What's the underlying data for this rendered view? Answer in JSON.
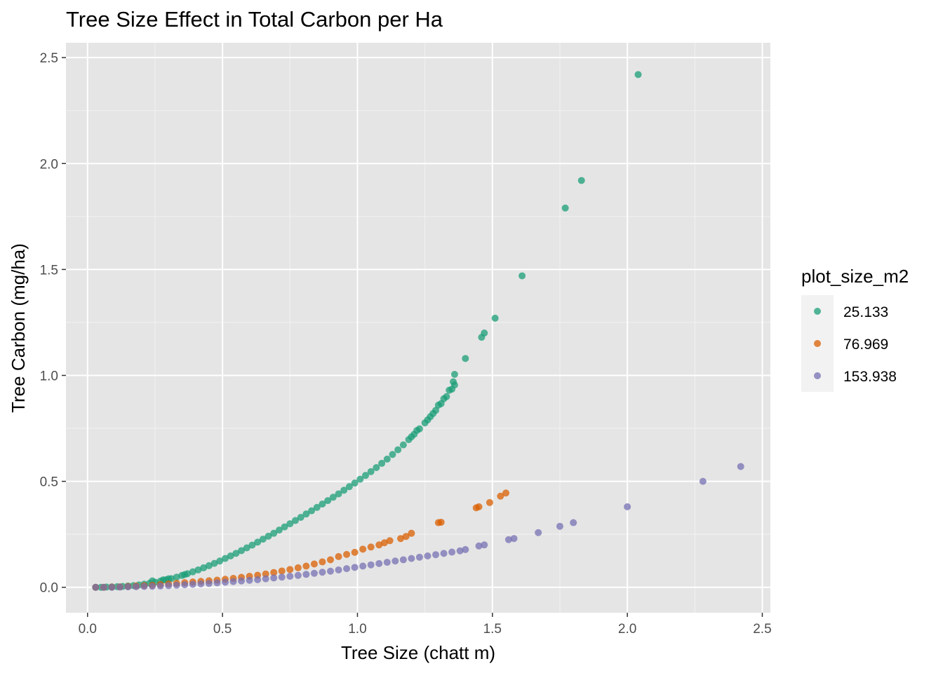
{
  "chart_data": {
    "type": "scatter",
    "title": "Tree  Size Effect in Total Carbon per Ha",
    "xlabel": "Tree Size (chatt m)",
    "ylabel": "Tree Carbon (mg/ha)",
    "xlim": [
      -0.08,
      2.53
    ],
    "ylim": [
      -0.12,
      2.57
    ],
    "x_ticks": [
      0.0,
      0.5,
      1.0,
      1.5,
      2.0,
      2.5
    ],
    "x_tick_labels": [
      "0.0",
      "0.5",
      "1.0",
      "1.5",
      "2.0",
      "2.5"
    ],
    "y_ticks": [
      0.0,
      0.5,
      1.0,
      1.5,
      2.0,
      2.5
    ],
    "y_tick_labels": [
      "0.0",
      "0.5",
      "1.0",
      "1.5",
      "2.0",
      "2.5"
    ],
    "grid": true,
    "legend": {
      "title": "plot_size_m2",
      "placement": "right"
    },
    "series": [
      {
        "name": "25.133",
        "color": "#1b9e77",
        "points": [
          [
            0.03,
            0.0
          ],
          [
            0.05,
            0.0
          ],
          [
            0.07,
            0.001
          ],
          [
            0.09,
            0.002
          ],
          [
            0.11,
            0.003
          ],
          [
            0.13,
            0.004
          ],
          [
            0.15,
            0.006
          ],
          [
            0.17,
            0.008
          ],
          [
            0.19,
            0.011
          ],
          [
            0.21,
            0.015
          ],
          [
            0.23,
            0.019
          ],
          [
            0.25,
            0.024
          ],
          [
            0.27,
            0.029
          ],
          [
            0.29,
            0.035
          ],
          [
            0.31,
            0.041
          ],
          [
            0.33,
            0.048
          ],
          [
            0.35,
            0.056
          ],
          [
            0.37,
            0.064
          ],
          [
            0.39,
            0.073
          ],
          [
            0.41,
            0.082
          ],
          [
            0.43,
            0.092
          ],
          [
            0.45,
            0.102
          ],
          [
            0.47,
            0.113
          ],
          [
            0.49,
            0.124
          ],
          [
            0.51,
            0.136
          ],
          [
            0.53,
            0.148
          ],
          [
            0.55,
            0.16
          ],
          [
            0.57,
            0.173
          ],
          [
            0.59,
            0.186
          ],
          [
            0.61,
            0.199
          ],
          [
            0.63,
            0.213
          ],
          [
            0.65,
            0.227
          ],
          [
            0.67,
            0.241
          ],
          [
            0.69,
            0.255
          ],
          [
            0.71,
            0.27
          ],
          [
            0.73,
            0.285
          ],
          [
            0.75,
            0.3
          ],
          [
            0.77,
            0.315
          ],
          [
            0.79,
            0.33
          ],
          [
            0.81,
            0.346
          ],
          [
            0.83,
            0.361
          ],
          [
            0.85,
            0.377
          ],
          [
            0.87,
            0.393
          ],
          [
            0.89,
            0.409
          ],
          [
            0.91,
            0.425
          ],
          [
            0.93,
            0.441
          ],
          [
            0.95,
            0.458
          ],
          [
            0.97,
            0.475
          ],
          [
            0.99,
            0.492
          ],
          [
            1.01,
            0.51
          ],
          [
            1.03,
            0.528
          ],
          [
            1.05,
            0.546
          ],
          [
            1.07,
            0.565
          ],
          [
            1.09,
            0.585
          ],
          [
            1.11,
            0.605
          ],
          [
            1.13,
            0.627
          ],
          [
            1.15,
            0.649
          ],
          [
            1.17,
            0.672
          ],
          [
            1.19,
            0.697
          ],
          [
            1.21,
            0.722
          ],
          [
            1.23,
            0.748
          ],
          [
            1.25,
            0.776
          ],
          [
            1.27,
            0.805
          ],
          [
            1.29,
            0.835
          ],
          [
            1.31,
            0.867
          ],
          [
            1.33,
            0.9
          ],
          [
            1.35,
            0.935
          ],
          [
            1.36,
            0.955
          ],
          [
            0.24,
            0.03
          ],
          [
            0.28,
            0.035
          ],
          [
            0.3,
            0.04
          ],
          [
            0.36,
            0.06
          ],
          [
            1.2,
            0.71
          ],
          [
            1.22,
            0.74
          ],
          [
            1.26,
            0.79
          ],
          [
            1.28,
            0.82
          ],
          [
            1.3,
            0.86
          ],
          [
            1.32,
            0.89
          ],
          [
            1.34,
            0.93
          ],
          [
            1.355,
            0.97
          ],
          [
            1.36,
            1.005
          ],
          [
            1.4,
            1.08
          ],
          [
            1.46,
            1.18
          ],
          [
            1.47,
            1.2
          ],
          [
            1.51,
            1.27
          ],
          [
            1.61,
            1.47
          ],
          [
            1.77,
            1.79
          ],
          [
            1.83,
            1.92
          ],
          [
            2.04,
            2.42
          ]
        ]
      },
      {
        "name": "76.969",
        "color": "#d95f02",
        "points": [
          [
            0.03,
            0.0
          ],
          [
            0.06,
            0.0
          ],
          [
            0.09,
            0.001
          ],
          [
            0.12,
            0.002
          ],
          [
            0.15,
            0.004
          ],
          [
            0.18,
            0.006
          ],
          [
            0.21,
            0.008
          ],
          [
            0.24,
            0.01
          ],
          [
            0.27,
            0.013
          ],
          [
            0.3,
            0.016
          ],
          [
            0.33,
            0.019
          ],
          [
            0.36,
            0.022
          ],
          [
            0.39,
            0.025
          ],
          [
            0.42,
            0.028
          ],
          [
            0.45,
            0.031
          ],
          [
            0.48,
            0.034
          ],
          [
            0.51,
            0.038
          ],
          [
            0.54,
            0.042
          ],
          [
            0.57,
            0.047
          ],
          [
            0.6,
            0.052
          ],
          [
            0.63,
            0.057
          ],
          [
            0.66,
            0.063
          ],
          [
            0.69,
            0.07
          ],
          [
            0.72,
            0.077
          ],
          [
            0.75,
            0.084
          ],
          [
            0.78,
            0.092
          ],
          [
            0.81,
            0.1
          ],
          [
            0.84,
            0.11
          ],
          [
            0.87,
            0.12
          ],
          [
            0.9,
            0.13
          ],
          [
            0.93,
            0.145
          ],
          [
            0.96,
            0.155
          ],
          [
            0.99,
            0.165
          ],
          [
            1.02,
            0.18
          ],
          [
            1.05,
            0.19
          ],
          [
            1.08,
            0.2
          ],
          [
            1.1,
            0.21
          ],
          [
            1.12,
            0.22
          ],
          [
            1.16,
            0.23
          ],
          [
            1.18,
            0.24
          ],
          [
            1.2,
            0.255
          ],
          [
            1.3,
            0.305
          ],
          [
            1.31,
            0.307
          ],
          [
            1.44,
            0.375
          ],
          [
            1.45,
            0.38
          ],
          [
            1.49,
            0.4
          ],
          [
            1.53,
            0.43
          ],
          [
            1.55,
            0.445
          ]
        ]
      },
      {
        "name": "153.938",
        "color": "#7570b3",
        "points": [
          [
            0.03,
            0.0
          ],
          [
            0.06,
            0.0
          ],
          [
            0.09,
            0.0
          ],
          [
            0.12,
            0.001
          ],
          [
            0.15,
            0.002
          ],
          [
            0.18,
            0.003
          ],
          [
            0.21,
            0.004
          ],
          [
            0.24,
            0.005
          ],
          [
            0.27,
            0.006
          ],
          [
            0.3,
            0.008
          ],
          [
            0.33,
            0.01
          ],
          [
            0.36,
            0.012
          ],
          [
            0.39,
            0.014
          ],
          [
            0.42,
            0.016
          ],
          [
            0.45,
            0.018
          ],
          [
            0.48,
            0.021
          ],
          [
            0.51,
            0.024
          ],
          [
            0.54,
            0.027
          ],
          [
            0.57,
            0.03
          ],
          [
            0.6,
            0.033
          ],
          [
            0.63,
            0.036
          ],
          [
            0.66,
            0.04
          ],
          [
            0.69,
            0.044
          ],
          [
            0.72,
            0.048
          ],
          [
            0.75,
            0.052
          ],
          [
            0.78,
            0.056
          ],
          [
            0.81,
            0.061
          ],
          [
            0.84,
            0.066
          ],
          [
            0.87,
            0.071
          ],
          [
            0.9,
            0.076
          ],
          [
            0.93,
            0.082
          ],
          [
            0.96,
            0.088
          ],
          [
            0.99,
            0.094
          ],
          [
            1.02,
            0.1
          ],
          [
            1.05,
            0.106
          ],
          [
            1.08,
            0.112
          ],
          [
            1.11,
            0.118
          ],
          [
            1.14,
            0.124
          ],
          [
            1.17,
            0.13
          ],
          [
            1.2,
            0.136
          ],
          [
            1.23,
            0.142
          ],
          [
            1.26,
            0.148
          ],
          [
            1.29,
            0.154
          ],
          [
            1.32,
            0.16
          ],
          [
            1.35,
            0.166
          ],
          [
            1.38,
            0.172
          ],
          [
            1.4,
            0.178
          ],
          [
            1.45,
            0.195
          ],
          [
            1.47,
            0.2
          ],
          [
            1.56,
            0.225
          ],
          [
            1.58,
            0.23
          ],
          [
            1.67,
            0.258
          ],
          [
            1.75,
            0.288
          ],
          [
            1.8,
            0.305
          ],
          [
            2.0,
            0.38
          ],
          [
            2.28,
            0.5
          ],
          [
            2.42,
            0.57
          ]
        ]
      }
    ]
  }
}
